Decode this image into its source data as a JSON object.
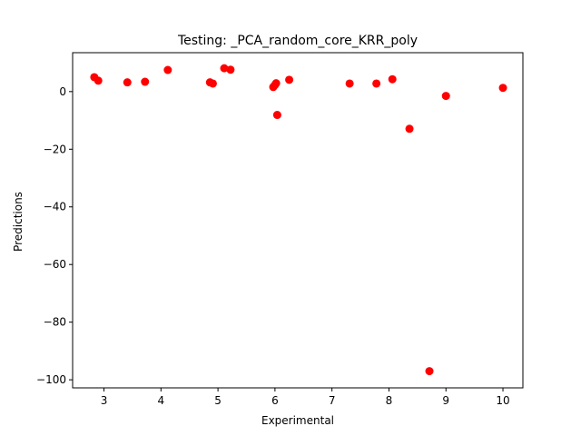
{
  "chart_data": {
    "type": "scatter",
    "title": "Testing: _PCA_random_core_KRR_poly",
    "xlabel": "Experimental",
    "ylabel": "Predictions",
    "xlim": [
      2.45,
      10.35
    ],
    "ylim": [
      -102.8,
      13.5
    ],
    "xticks": [
      3,
      4,
      5,
      6,
      7,
      8,
      9,
      10
    ],
    "yticks": [
      -100,
      -80,
      -60,
      -40,
      -20,
      0
    ],
    "ytick_labels": [
      "−100",
      "−80",
      "−60",
      "−40",
      "−20",
      "0"
    ],
    "grid": false,
    "marker_color": "#ff0000",
    "points": [
      {
        "x": 2.83,
        "y": 5.0
      },
      {
        "x": 2.9,
        "y": 3.8
      },
      {
        "x": 3.41,
        "y": 3.2
      },
      {
        "x": 3.72,
        "y": 3.4
      },
      {
        "x": 4.12,
        "y": 7.5
      },
      {
        "x": 4.86,
        "y": 3.2
      },
      {
        "x": 4.91,
        "y": 2.8
      },
      {
        "x": 5.11,
        "y": 8.1
      },
      {
        "x": 5.22,
        "y": 7.6
      },
      {
        "x": 5.97,
        "y": 1.6
      },
      {
        "x": 6.0,
        "y": 2.3
      },
      {
        "x": 6.02,
        "y": 2.9
      },
      {
        "x": 6.04,
        "y": -8.1
      },
      {
        "x": 6.25,
        "y": 4.1
      },
      {
        "x": 7.31,
        "y": 2.8
      },
      {
        "x": 7.78,
        "y": 2.8
      },
      {
        "x": 8.06,
        "y": 4.3
      },
      {
        "x": 8.36,
        "y": -12.9
      },
      {
        "x": 8.71,
        "y": -97.0
      },
      {
        "x": 9.0,
        "y": -1.5
      },
      {
        "x": 10.0,
        "y": 1.3
      }
    ]
  }
}
